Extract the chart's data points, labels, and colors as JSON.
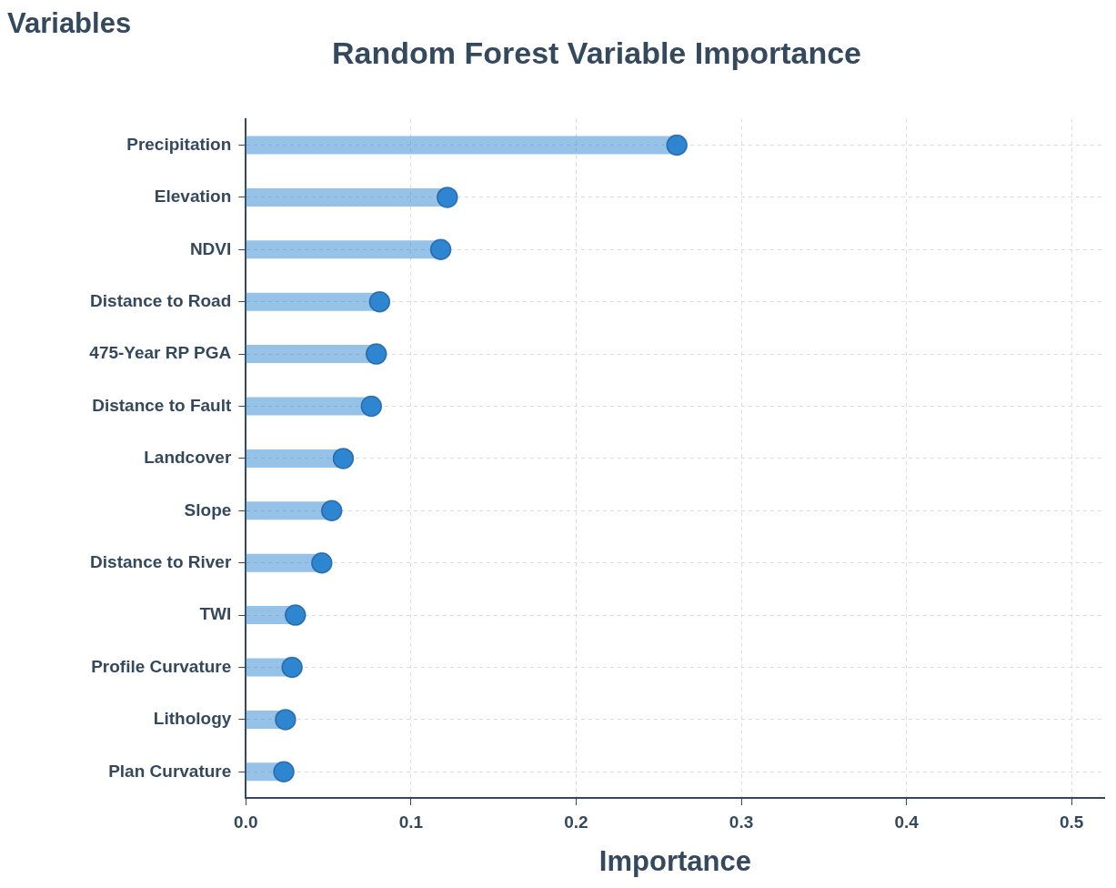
{
  "chart_data": {
    "type": "lollipop",
    "orientation": "horizontal",
    "title": "Random Forest Variable Importance",
    "xlabel": "Importance",
    "ylabel": "Variables",
    "categories": [
      "Precipitation",
      "Elevation",
      "NDVI",
      "Distance to Road",
      "475-Year RP PGA",
      "Distance to Fault",
      "Landcover",
      "Slope",
      "Distance to River",
      "TWI",
      "Profile Curvature",
      "Lithology",
      "Plan Curvature"
    ],
    "values": [
      0.261,
      0.122,
      0.118,
      0.081,
      0.079,
      0.076,
      0.059,
      0.052,
      0.046,
      0.03,
      0.028,
      0.024,
      0.023
    ],
    "color": "#2e86d0",
    "xlim": [
      0,
      0.52
    ],
    "xticks": [
      {
        "value": 0,
        "label": "0.0"
      },
      0.1,
      0.2,
      0.3,
      0.4,
      0.5
    ],
    "grid": true,
    "legend": false,
    "marker": "circle"
  }
}
